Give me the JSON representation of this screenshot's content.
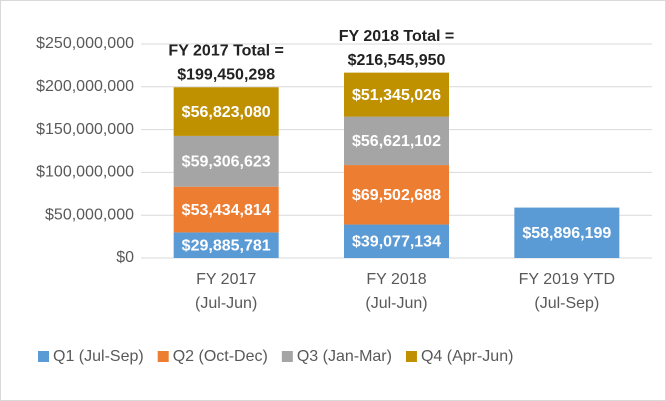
{
  "chart_data": {
    "type": "stacked_bar",
    "categories": [
      [
        "FY 2017",
        "(Jul-Jun)"
      ],
      [
        "FY 2018",
        "(Jul-Jun)"
      ],
      [
        "FY 2019 YTD",
        "(Jul-Sep)"
      ]
    ],
    "series": [
      {
        "name": "Q1 (Jul-Sep)",
        "color": "#5b9bd5",
        "values": [
          29885781,
          39077134,
          58896199
        ],
        "value_labels": [
          "$29,885,781",
          "$39,077,134",
          "$58,896,199"
        ]
      },
      {
        "name": "Q2 (Oct-Dec)",
        "color": "#ed7d31",
        "values": [
          53434814,
          69502688,
          null
        ],
        "value_labels": [
          "$53,434,814",
          "$69,502,688",
          null
        ]
      },
      {
        "name": "Q3 (Jan-Mar)",
        "color": "#a5a5a5",
        "values": [
          59306623,
          56621102,
          null
        ],
        "value_labels": [
          "$59,306,623",
          "$56,621,102",
          null
        ]
      },
      {
        "name": "Q4 (Apr-Jun)",
        "color": "#bf9000",
        "values": [
          56823080,
          51345026,
          null
        ],
        "value_labels": [
          "$56,823,080",
          "$51,345,026",
          null
        ]
      }
    ],
    "annotations": [
      [
        "FY 2017 Total =",
        "$199,450,298"
      ],
      [
        "FY 2018 Total =",
        "$216,545,950"
      ]
    ],
    "ylim": [
      0,
      250000000
    ],
    "yticks": [
      {
        "value": 0,
        "label": "$0"
      },
      {
        "value": 50000000,
        "label": "$50,000,000"
      },
      {
        "value": 100000000,
        "label": "$100,000,000"
      },
      {
        "value": 150000000,
        "label": "$150,000,000"
      },
      {
        "value": 200000000,
        "label": "$200,000,000"
      },
      {
        "value": 250000000,
        "label": "$250,000,000"
      }
    ],
    "grid": true,
    "legend": "bottom"
  }
}
